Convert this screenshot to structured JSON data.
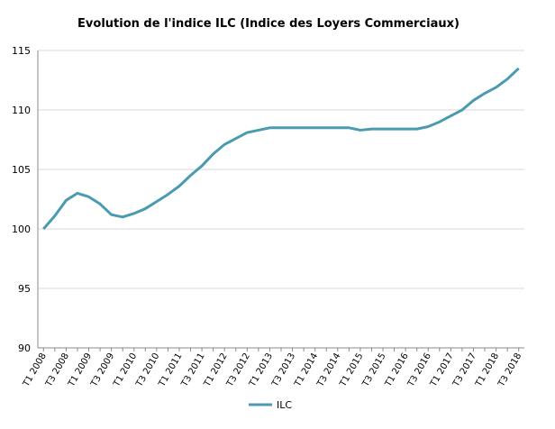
{
  "chart_data": {
    "type": "line",
    "title": "Evolution de l'indice ILC (Indice des Loyers Commerciaux)",
    "categories": [
      "T1 2008",
      null,
      "T3 2008",
      null,
      "T1 2009",
      null,
      "T3 2009",
      null,
      "T1 2010",
      null,
      "T3 2010",
      null,
      "T1 2011",
      null,
      "T3 2011",
      null,
      "T1 2012",
      null,
      "T3 2012",
      null,
      "T1 2013",
      null,
      "T3 2013",
      null,
      "T1 2014",
      null,
      "T3 2014",
      null,
      "T1 2015",
      null,
      "T3 2015",
      null,
      "T1 2016",
      null,
      "T3 2016",
      null,
      "T1 2017",
      null,
      "T3 2017",
      null,
      "T1 2018",
      null,
      "T3 2018"
    ],
    "series": [
      {
        "name": "ILC",
        "color": "#4a9bb0",
        "values": [
          100,
          101.1,
          102.4,
          103.0,
          102.7,
          102.1,
          101.2,
          101.0,
          101.3,
          101.7,
          102.3,
          102.9,
          103.6,
          104.5,
          105.3,
          106.3,
          107.1,
          107.6,
          108.1,
          108.3,
          108.5,
          108.5,
          108.5,
          108.5,
          108.5,
          108.5,
          108.5,
          108.5,
          108.3,
          108.4,
          108.4,
          108.4,
          108.4,
          108.4,
          108.6,
          109.0,
          109.5,
          110.0,
          110.8,
          111.4,
          111.9,
          112.6,
          113.5
        ]
      }
    ],
    "ylim": [
      90,
      115
    ],
    "yticks": [
      90,
      95,
      100,
      105,
      110,
      115
    ],
    "grid": true,
    "legend": "bottom"
  }
}
